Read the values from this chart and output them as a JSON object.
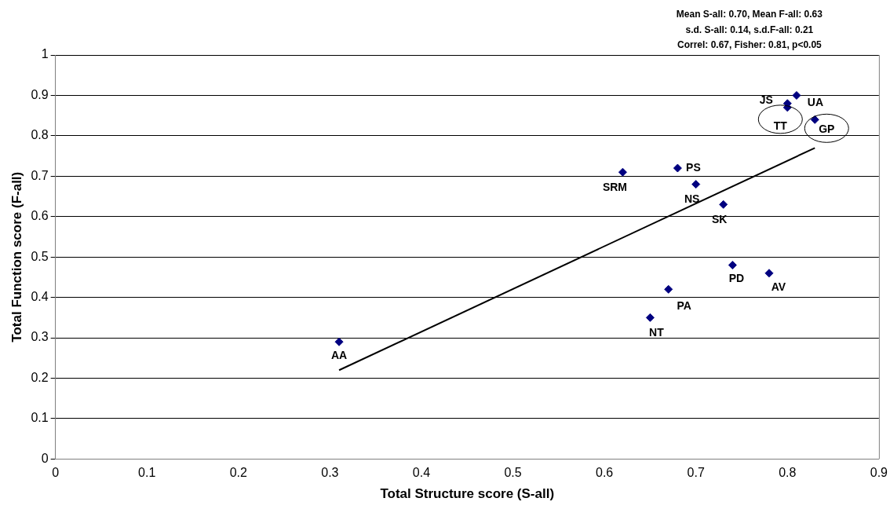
{
  "chart_data": {
    "type": "scatter",
    "xlabel": "Total Structure score (S-all)",
    "ylabel": "Total Function score (F-all)",
    "xlim": [
      0,
      0.9
    ],
    "xticks": [
      0,
      0.1,
      0.2,
      0.3,
      0.4,
      0.5,
      0.6,
      0.7,
      0.8,
      0.9
    ],
    "ylim": [
      0,
      1
    ],
    "yticks": [
      0,
      0.1,
      0.2,
      0.3,
      0.4,
      0.5,
      0.6,
      0.7,
      0.8,
      0.9,
      1
    ],
    "grid": "y",
    "legend": false,
    "marker": "diamond",
    "series": [
      {
        "color": "#000080",
        "x": [
          0.31,
          0.65,
          0.67,
          0.74,
          0.78,
          0.73,
          0.7,
          0.68,
          0.62,
          0.8,
          0.8,
          0.81,
          0.83
        ],
        "values": [
          0.29,
          0.35,
          0.42,
          0.48,
          0.46,
          0.63,
          0.68,
          0.72,
          0.71,
          0.88,
          0.87,
          0.9,
          0.84
        ]
      },
      {
        "type": "line",
        "color": "#000000",
        "marker": "none",
        "x": [
          0.31,
          0.83
        ],
        "values": [
          0.22,
          0.77
        ]
      }
    ],
    "annotations": [
      "Mean S-all: 0.70, Mean F-all: 0.63",
      "s.d. S-all: 0.14, s.d.F-all: 0.21",
      "Correl: 0.67, Fisher: 0.81, p<0.05",
      {
        "text": "AA",
        "x": 0.31,
        "y": 0.29
      },
      {
        "text": "NT",
        "x": 0.65,
        "y": 0.35
      },
      {
        "text": "PA",
        "x": 0.67,
        "y": 0.42
      },
      {
        "text": "PD",
        "x": 0.74,
        "y": 0.48
      },
      {
        "text": "AV",
        "x": 0.78,
        "y": 0.46
      },
      {
        "text": "SK",
        "x": 0.73,
        "y": 0.63
      },
      {
        "text": "NS",
        "x": 0.7,
        "y": 0.68
      },
      {
        "text": "PS",
        "x": 0.68,
        "y": 0.72
      },
      {
        "text": "SRM",
        "x": 0.62,
        "y": 0.71
      },
      {
        "text": "JS",
        "x": 0.8,
        "y": 0.88
      },
      {
        "text": "TT",
        "x": 0.8,
        "y": 0.87
      },
      {
        "text": "UA",
        "x": 0.81,
        "y": 0.9
      },
      {
        "text": "GP",
        "x": 0.83,
        "y": 0.84
      }
    ]
  }
}
